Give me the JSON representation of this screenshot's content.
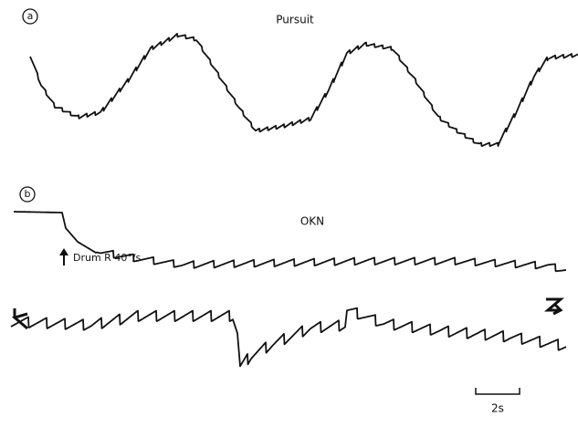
{
  "figure": {
    "panel_a": {
      "label": "a",
      "title": "Pursuit"
    },
    "panel_b": {
      "label": "b",
      "title": "OKN",
      "stimulus": "Drum R 40°/s"
    },
    "scale_bar": "2s"
  }
}
